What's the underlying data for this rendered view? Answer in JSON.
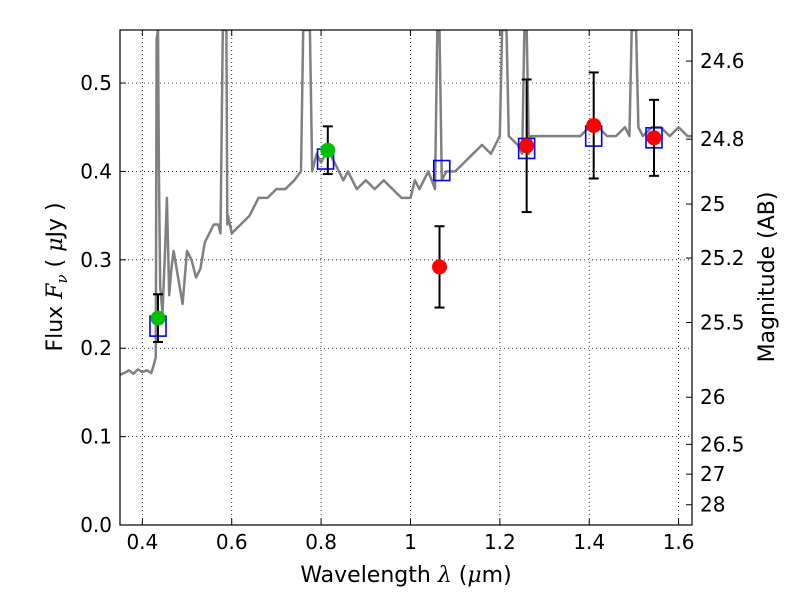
{
  "chart_data": {
    "type": "scatter",
    "xlabel": {
      "prefix": "Wavelength  ",
      "var": "λ",
      "units_open": " (",
      "mu": "μ",
      "units_close": "m)"
    },
    "ylabel": {
      "prefix": "Flux  ",
      "var": "F",
      "sub": "ν",
      "units_open": "  ( ",
      "mu": "μ",
      "units_close": "Jy )"
    },
    "y2label": "Magnitude (AB)",
    "xlim": [
      0.35,
      1.63
    ],
    "ylim": [
      0.0,
      0.56
    ],
    "grid": true,
    "x_ticks": [
      0.4,
      0.6,
      0.8,
      1.0,
      1.2,
      1.4,
      1.6
    ],
    "x_tick_labels": [
      "0.4",
      "0.6",
      "0.8",
      "1",
      "1.2",
      "1.4",
      "1.6"
    ],
    "y_ticks": [
      0.0,
      0.1,
      0.2,
      0.3,
      0.4,
      0.5
    ],
    "y_tick_labels": [
      "0.0",
      "0.1",
      "0.2",
      "0.3",
      "0.4",
      "0.5"
    ],
    "y2_ticks": [
      24.6,
      24.8,
      25,
      25.2,
      25.5,
      26,
      26.5,
      27,
      28
    ],
    "y2_tick_labels": [
      "24.6",
      "24.8",
      "25",
      "25.2",
      "25.5",
      "26",
      "26.5",
      "27",
      "28"
    ],
    "series": [
      {
        "kind": "model_spectrum",
        "color": "#808080",
        "x": [
          0.35,
          0.36,
          0.37,
          0.38,
          0.39,
          0.4,
          0.41,
          0.42,
          0.425,
          0.43,
          0.432,
          0.435,
          0.437,
          0.44,
          0.445,
          0.45,
          0.455,
          0.46,
          0.465,
          0.47,
          0.48,
          0.49,
          0.5,
          0.51,
          0.52,
          0.53,
          0.54,
          0.55,
          0.56,
          0.57,
          0.575,
          0.58,
          0.585,
          0.586,
          0.588,
          0.59,
          0.592,
          0.6,
          0.62,
          0.64,
          0.66,
          0.68,
          0.7,
          0.72,
          0.74,
          0.755,
          0.76,
          0.765,
          0.768,
          0.772,
          0.775,
          0.78,
          0.785,
          0.79,
          0.8,
          0.81,
          0.82,
          0.83,
          0.84,
          0.85,
          0.86,
          0.88,
          0.9,
          0.92,
          0.94,
          0.96,
          0.98,
          1.0,
          1.01,
          1.02,
          1.04,
          1.055,
          1.06,
          1.065,
          1.07,
          1.08,
          1.1,
          1.12,
          1.14,
          1.16,
          1.18,
          1.2,
          1.205,
          1.21,
          1.215,
          1.22,
          1.24,
          1.25,
          1.255,
          1.26,
          1.265,
          1.27,
          1.28,
          1.3,
          1.32,
          1.34,
          1.36,
          1.38,
          1.4,
          1.42,
          1.44,
          1.46,
          1.48,
          1.49,
          1.495,
          1.5,
          1.505,
          1.51,
          1.52,
          1.54,
          1.56,
          1.58,
          1.6,
          1.62,
          1.63
        ],
        "y": [
          0.17,
          0.172,
          0.175,
          0.171,
          0.176,
          0.173,
          0.175,
          0.172,
          0.18,
          0.19,
          0.55,
          0.56,
          0.4,
          0.27,
          0.24,
          0.3,
          0.37,
          0.26,
          0.29,
          0.31,
          0.28,
          0.25,
          0.31,
          0.3,
          0.28,
          0.29,
          0.32,
          0.33,
          0.34,
          0.34,
          0.33,
          0.56,
          0.56,
          0.56,
          0.56,
          0.34,
          0.35,
          0.33,
          0.34,
          0.35,
          0.37,
          0.37,
          0.38,
          0.38,
          0.39,
          0.4,
          0.56,
          0.56,
          0.56,
          0.56,
          0.56,
          0.4,
          0.41,
          0.42,
          0.41,
          0.42,
          0.42,
          0.41,
          0.4,
          0.39,
          0.4,
          0.38,
          0.39,
          0.38,
          0.39,
          0.38,
          0.37,
          0.37,
          0.39,
          0.38,
          0.4,
          0.38,
          0.56,
          0.56,
          0.39,
          0.4,
          0.4,
          0.41,
          0.42,
          0.43,
          0.42,
          0.44,
          0.56,
          0.56,
          0.56,
          0.44,
          0.43,
          0.42,
          0.56,
          0.56,
          0.42,
          0.44,
          0.44,
          0.44,
          0.44,
          0.44,
          0.44,
          0.44,
          0.45,
          0.45,
          0.44,
          0.44,
          0.45,
          0.44,
          0.56,
          0.56,
          0.56,
          0.45,
          0.44,
          0.45,
          0.45,
          0.44,
          0.45,
          0.44,
          0.44
        ]
      },
      {
        "kind": "model_photometry",
        "marker": "open-square",
        "color": "#0000ff",
        "x": [
          0.435,
          0.81,
          1.07,
          1.26,
          1.41,
          1.545
        ],
        "y": [
          0.225,
          0.414,
          0.401,
          0.426,
          0.44,
          0.438
        ]
      },
      {
        "kind": "observed_optical",
        "marker": "circle",
        "color": "#00c000",
        "x": [
          0.435,
          0.815
        ],
        "y": [
          0.234,
          0.424
        ],
        "yerr": [
          0.027,
          0.027
        ]
      },
      {
        "kind": "observed_nir",
        "marker": "circle",
        "color": "#ff0000",
        "x": [
          1.065,
          1.26,
          1.41,
          1.545
        ],
        "y": [
          0.292,
          0.429,
          0.452,
          0.438
        ],
        "yerr": [
          0.046,
          0.075,
          0.06,
          0.043
        ]
      }
    ]
  }
}
